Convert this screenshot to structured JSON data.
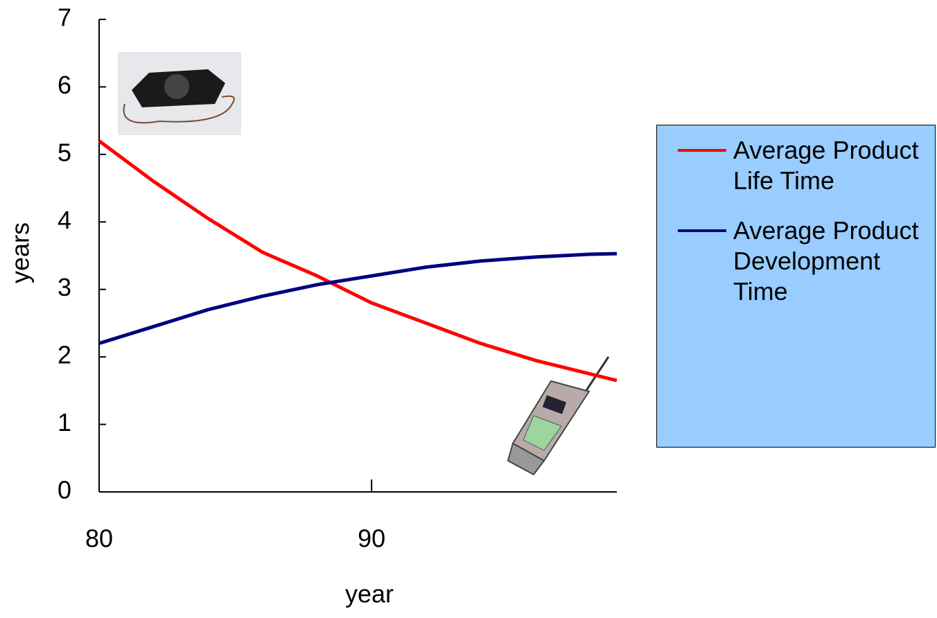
{
  "chart_data": {
    "type": "line",
    "xlabel": "year",
    "ylabel": "years",
    "x": [
      80,
      82,
      84,
      86,
      88,
      90,
      92,
      94,
      96,
      98,
      99
    ],
    "series": [
      {
        "name": "Average Product Life Time",
        "color": "#ff0000",
        "values": [
          5.2,
          4.6,
          4.05,
          3.55,
          3.2,
          2.8,
          2.5,
          2.2,
          1.95,
          1.75,
          1.65
        ]
      },
      {
        "name": "Average Product Development Time",
        "color": "#000080",
        "values": [
          2.2,
          2.45,
          2.7,
          2.9,
          3.07,
          3.2,
          3.33,
          3.42,
          3.48,
          3.52,
          3.53
        ]
      }
    ],
    "xlim": [
      80,
      99
    ],
    "xticks": [
      80,
      90
    ],
    "ylim": [
      0,
      7
    ],
    "yticks": [
      0,
      1,
      2,
      3,
      4,
      5,
      6,
      7
    ],
    "legend": "right"
  }
}
